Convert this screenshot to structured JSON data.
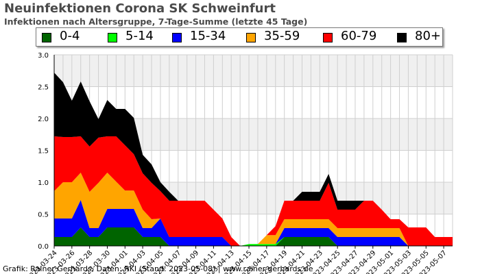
{
  "header": {
    "title": "Neuinfektionen Corona SK Schweinfurt",
    "subtitle": "Infektionen nach Altersgruppe, 7-Tage-Summe (letzte 45 Tage)"
  },
  "footer": {
    "credit": "Grafik: Rainer Gerhards, Daten: RKI (Stand: 2023-05-08) | www.rainer-gerhards.de"
  },
  "chart_data": {
    "type": "area",
    "stacked": true,
    "title": "Neuinfektionen Corona SK Schweinfurt",
    "subtitle": "Infektionen nach Altersgruppe, 7-Tage-Summe (letzte 45 Tage)",
    "xlabel": "",
    "ylabel": "",
    "ylim": [
      0,
      3
    ],
    "yticks": [
      "0.0",
      "0.5",
      "1.0",
      "1.5",
      "2.0",
      "2.5",
      "3.0"
    ],
    "grid": true,
    "legend_position": "top",
    "x": [
      "2023-03-24",
      "2023-03-25",
      "2023-03-26",
      "2023-03-27",
      "2023-03-28",
      "2023-03-29",
      "2023-03-30",
      "2023-03-31",
      "2023-04-01",
      "2023-04-02",
      "2023-04-03",
      "2023-04-04",
      "2023-04-05",
      "2023-04-06",
      "2023-04-07",
      "2023-04-08",
      "2023-04-09",
      "2023-04-10",
      "2023-04-11",
      "2023-04-12",
      "2023-04-13",
      "2023-04-14",
      "2023-04-15",
      "2023-04-16",
      "2023-04-17",
      "2023-04-18",
      "2023-04-19",
      "2023-04-20",
      "2023-04-21",
      "2023-04-22",
      "2023-04-23",
      "2023-04-24",
      "2023-04-25",
      "2023-04-26",
      "2023-04-27",
      "2023-04-28",
      "2023-04-29",
      "2023-04-30",
      "2023-05-01",
      "2023-05-02",
      "2023-05-03",
      "2023-05-04",
      "2023-05-05",
      "2023-05-06",
      "2023-05-07",
      "2023-05-08"
    ],
    "x_tick_labels": [
      "2023-03-24",
      "2023-03-26",
      "2023-03-28",
      "2023-03-30",
      "2023-04-01",
      "2023-04-03",
      "2023-04-05",
      "2023-04-07",
      "2023-04-09",
      "2023-04-11",
      "2023-04-13",
      "2023-04-15",
      "2023-04-17",
      "2023-04-19",
      "2023-04-21",
      "2023-04-23",
      "2023-04-25",
      "2023-04-27",
      "2023-04-29",
      "2023-05-01",
      "2023-05-03",
      "2023-05-05",
      "2023-05-07"
    ],
    "series": [
      {
        "name": "0-4",
        "color": "#006400",
        "values": [
          0.14,
          0.14,
          0.14,
          0.29,
          0.14,
          0.14,
          0.29,
          0.29,
          0.29,
          0.29,
          0.14,
          0.14,
          0.14,
          0,
          0,
          0,
          0,
          0,
          0,
          0,
          0,
          0,
          0,
          0,
          0,
          0,
          0.14,
          0.14,
          0.14,
          0.14,
          0.14,
          0.14,
          0,
          0,
          0,
          0,
          0,
          0,
          0,
          0,
          0,
          0,
          0,
          0,
          0,
          0
        ]
      },
      {
        "name": "5-14",
        "color": "#00ff00",
        "values": [
          0,
          0,
          0,
          0,
          0,
          0,
          0,
          0,
          0,
          0,
          0,
          0,
          0,
          0,
          0,
          0,
          0,
          0,
          0,
          0,
          0,
          0,
          0.03,
          0.03,
          0.03,
          0.03,
          0,
          0,
          0,
          0,
          0,
          0,
          0,
          0,
          0,
          0,
          0,
          0,
          0,
          0,
          0,
          0,
          0,
          0,
          0,
          0
        ]
      },
      {
        "name": "15-34",
        "color": "#0000ff",
        "values": [
          0.29,
          0.29,
          0.29,
          0.43,
          0.14,
          0.14,
          0.29,
          0.29,
          0.29,
          0.29,
          0.14,
          0.14,
          0.29,
          0.14,
          0.14,
          0.14,
          0.14,
          0.14,
          0.14,
          0.14,
          0,
          0,
          0,
          0,
          0,
          0,
          0.14,
          0.14,
          0.14,
          0.14,
          0.14,
          0.14,
          0.14,
          0.14,
          0.14,
          0.14,
          0.14,
          0.14,
          0.14,
          0.14,
          0,
          0,
          0,
          0,
          0,
          0
        ]
      },
      {
        "name": "35-59",
        "color": "#ffa500",
        "values": [
          0.43,
          0.57,
          0.57,
          0.43,
          0.57,
          0.71,
          0.57,
          0.43,
          0.29,
          0.29,
          0.29,
          0.14,
          0,
          0,
          0,
          0,
          0,
          0,
          0,
          0,
          0,
          0,
          0,
          0,
          0.14,
          0.14,
          0.14,
          0.14,
          0.14,
          0.14,
          0.14,
          0.14,
          0.14,
          0.14,
          0.14,
          0.14,
          0.14,
          0.14,
          0.14,
          0.14,
          0,
          0,
          0,
          0,
          0,
          0
        ]
      },
      {
        "name": "60-79",
        "color": "#ff0000",
        "values": [
          0.86,
          0.71,
          0.71,
          0.57,
          0.71,
          0.71,
          0.57,
          0.71,
          0.71,
          0.57,
          0.57,
          0.57,
          0.43,
          0.57,
          0.57,
          0.57,
          0.57,
          0.57,
          0.43,
          0.29,
          0.14,
          0,
          0,
          0,
          0,
          0.14,
          0.29,
          0.29,
          0.29,
          0.29,
          0.29,
          0.57,
          0.29,
          0.29,
          0.29,
          0.43,
          0.43,
          0.29,
          0.14,
          0.14,
          0.29,
          0.29,
          0.29,
          0.14,
          0.14,
          0.14
        ]
      },
      {
        "name": "80+",
        "color": "#000000",
        "values": [
          1.0,
          0.86,
          0.57,
          0.86,
          0.71,
          0.29,
          0.57,
          0.43,
          0.57,
          0.57,
          0.29,
          0.29,
          0.14,
          0.14,
          0,
          0,
          0,
          0,
          0,
          0,
          0,
          0,
          0,
          0,
          0,
          0,
          0,
          0,
          0.14,
          0.14,
          0.14,
          0.14,
          0.14,
          0.14,
          0.14,
          0,
          0,
          0,
          0,
          0,
          0,
          0,
          0,
          0,
          0,
          0
        ]
      }
    ]
  }
}
